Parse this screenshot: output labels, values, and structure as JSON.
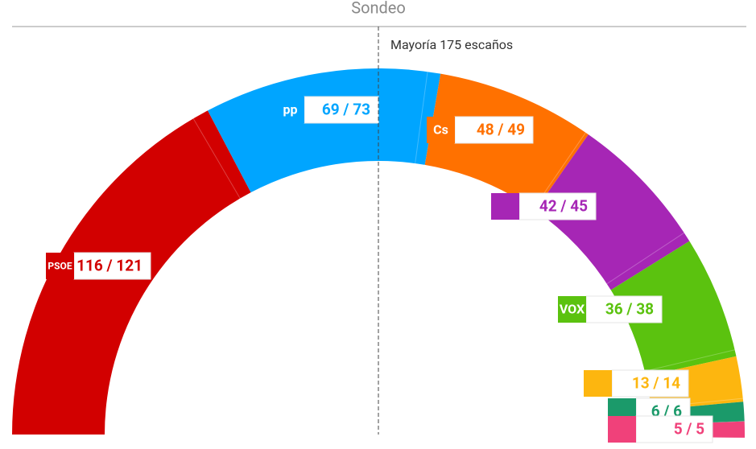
{
  "chart_data": {
    "type": "hemicycle",
    "title": "Sondeo",
    "annotation": "Mayoría 175 escaños",
    "majority": 175,
    "xlim": [
      0,
      350
    ],
    "categories": [
      "PSOE",
      "pp",
      "Cs",
      null,
      "VOX",
      null,
      null,
      null
    ],
    "low": [
      116,
      69,
      48,
      42,
      36,
      13,
      6,
      5
    ],
    "high": [
      121,
      73,
      49,
      45,
      38,
      14,
      6,
      5
    ],
    "value_labels": [
      "116 / 121",
      "69 / 73",
      "48 / 49",
      "42 / 45",
      "36 / 38",
      "13 / 14",
      "6 / 6",
      "5 / 5"
    ],
    "colors": [
      "#d20000",
      "#00a5ff",
      "#ff7100",
      "#a626b5",
      "#5bc20f",
      "#fdb60f",
      "#1b9a6a",
      "#f0417a"
    ]
  }
}
